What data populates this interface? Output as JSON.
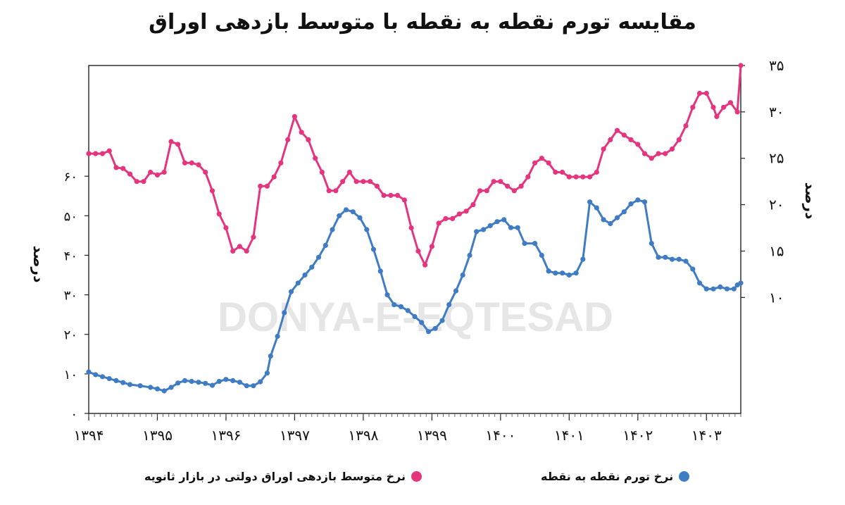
{
  "chart_data": {
    "type": "line",
    "title": "مقایسه تورم نقطه به نقطه با متوسط بازدهی اوراق",
    "watermark": "DONYA-E-EQTESAD",
    "left_axis": {
      "label": "درصد",
      "ticks": [
        "۰",
        "۱۰",
        "۲۰",
        "۳۰",
        "۴۰",
        "۵۰",
        "۶۰"
      ],
      "tick_values": [
        0,
        10,
        20,
        30,
        40,
        50,
        60
      ],
      "ylim": [
        0,
        88
      ]
    },
    "right_axis": {
      "label": "درصد",
      "ticks": [
        "۱۰",
        "۱۵",
        "۲۰",
        "۲۵",
        "۳۰",
        "۳۵"
      ],
      "tick_values": [
        10,
        15,
        20,
        25,
        30,
        35
      ],
      "ylim": [
        -2.5,
        35
      ]
    },
    "x_axis": {
      "ticks": [
        "۱۳۹۴",
        "۱۳۹۵",
        "۱۳۹۶",
        "۱۳۹۷",
        "۱۳۹۸",
        "۱۳۹۹",
        "۱۴۰۰",
        "۱۴۰۱",
        "۱۴۰۲",
        "۱۴۰۳"
      ],
      "tick_values": [
        1394,
        1395,
        1396,
        1397,
        1398,
        1399,
        1400,
        1401,
        1402,
        1403
      ],
      "xlim": [
        1394,
        1403.5
      ]
    },
    "series": [
      {
        "name": "نرخ تورم نقطه به نقطه",
        "color": "#3f7cc4",
        "axis": "left",
        "points": [
          [
            1394.0,
            10.5
          ],
          [
            1394.1,
            9.8
          ],
          [
            1394.2,
            9.3
          ],
          [
            1394.3,
            8.8
          ],
          [
            1394.4,
            8.3
          ],
          [
            1394.5,
            7.8
          ],
          [
            1394.6,
            7.3
          ],
          [
            1394.75,
            7.0
          ],
          [
            1394.9,
            6.6
          ],
          [
            1395.0,
            6.2
          ],
          [
            1395.1,
            5.7
          ],
          [
            1395.2,
            6.6
          ],
          [
            1395.3,
            7.7
          ],
          [
            1395.4,
            8.3
          ],
          [
            1395.5,
            8.1
          ],
          [
            1395.6,
            7.9
          ],
          [
            1395.7,
            7.6
          ],
          [
            1395.8,
            7.1
          ],
          [
            1395.9,
            8.1
          ],
          [
            1396.0,
            8.6
          ],
          [
            1396.1,
            8.3
          ],
          [
            1396.2,
            7.9
          ],
          [
            1396.3,
            7.0
          ],
          [
            1396.4,
            7.0
          ],
          [
            1396.5,
            8.0
          ],
          [
            1396.6,
            10.2
          ],
          [
            1396.65,
            14.5
          ],
          [
            1396.75,
            19.5
          ],
          [
            1396.85,
            25.5
          ],
          [
            1396.95,
            30.8
          ],
          [
            1397.05,
            33.0
          ],
          [
            1397.15,
            35.0
          ],
          [
            1397.25,
            37.0
          ],
          [
            1397.35,
            39.5
          ],
          [
            1397.45,
            42.5
          ],
          [
            1397.55,
            46.5
          ],
          [
            1397.65,
            50.0
          ],
          [
            1397.75,
            51.5
          ],
          [
            1397.85,
            51.0
          ],
          [
            1397.95,
            49.5
          ],
          [
            1398.05,
            46.5
          ],
          [
            1398.15,
            41.5
          ],
          [
            1398.25,
            36.0
          ],
          [
            1398.35,
            30.0
          ],
          [
            1398.45,
            27.5
          ],
          [
            1398.55,
            27.0
          ],
          [
            1398.65,
            26.0
          ],
          [
            1398.75,
            24.5
          ],
          [
            1398.85,
            23.0
          ],
          [
            1398.95,
            20.7
          ],
          [
            1399.05,
            21.5
          ],
          [
            1399.15,
            23.5
          ],
          [
            1399.25,
            27.5
          ],
          [
            1399.35,
            31.0
          ],
          [
            1399.45,
            35.0
          ],
          [
            1399.55,
            40.0
          ],
          [
            1399.65,
            46.0
          ],
          [
            1399.75,
            46.5
          ],
          [
            1399.85,
            47.5
          ],
          [
            1399.95,
            48.5
          ],
          [
            1400.05,
            49.0
          ],
          [
            1400.15,
            47.0
          ],
          [
            1400.25,
            47.0
          ],
          [
            1400.35,
            43.0
          ],
          [
            1400.5,
            43.0
          ],
          [
            1400.6,
            40.0
          ],
          [
            1400.7,
            36.0
          ],
          [
            1400.8,
            35.5
          ],
          [
            1400.9,
            35.5
          ],
          [
            1401.0,
            35.0
          ],
          [
            1401.1,
            35.5
          ],
          [
            1401.2,
            39.0
          ],
          [
            1401.3,
            53.5
          ],
          [
            1401.4,
            52.0
          ],
          [
            1401.5,
            49.0
          ],
          [
            1401.6,
            48.0
          ],
          [
            1401.7,
            49.5
          ],
          [
            1401.8,
            51.0
          ],
          [
            1401.9,
            53.0
          ],
          [
            1402.0,
            54.0
          ],
          [
            1402.1,
            53.5
          ],
          [
            1402.2,
            43.0
          ],
          [
            1402.3,
            39.5
          ],
          [
            1402.4,
            39.5
          ],
          [
            1402.5,
            39.0
          ],
          [
            1402.6,
            39.0
          ],
          [
            1402.7,
            38.5
          ],
          [
            1402.8,
            36.5
          ],
          [
            1402.9,
            33.0
          ],
          [
            1403.0,
            31.5
          ],
          [
            1403.1,
            31.5
          ],
          [
            1403.2,
            32.0
          ],
          [
            1403.3,
            31.5
          ],
          [
            1403.4,
            31.5
          ],
          [
            1403.45,
            32.5
          ],
          [
            1403.5,
            33.0
          ]
        ]
      },
      {
        "name": "نرخ متوسط بازدهی اوراق دولتی در بازار ثانویه",
        "color": "#e5357f",
        "axis": "right",
        "points": [
          [
            1394.0,
            25.5
          ],
          [
            1394.1,
            25.5
          ],
          [
            1394.2,
            25.5
          ],
          [
            1394.3,
            25.8
          ],
          [
            1394.4,
            24.0
          ],
          [
            1394.5,
            23.9
          ],
          [
            1394.6,
            23.3
          ],
          [
            1394.7,
            22.5
          ],
          [
            1394.8,
            22.5
          ],
          [
            1394.9,
            23.5
          ],
          [
            1395.0,
            23.2
          ],
          [
            1395.1,
            23.5
          ],
          [
            1395.2,
            26.8
          ],
          [
            1395.3,
            26.5
          ],
          [
            1395.4,
            24.5
          ],
          [
            1395.5,
            24.5
          ],
          [
            1395.6,
            24.3
          ],
          [
            1395.7,
            23.5
          ],
          [
            1395.8,
            21.5
          ],
          [
            1395.9,
            19.0
          ],
          [
            1396.0,
            17.5
          ],
          [
            1396.1,
            15.0
          ],
          [
            1396.2,
            15.5
          ],
          [
            1396.3,
            15.0
          ],
          [
            1396.4,
            16.5
          ],
          [
            1396.5,
            22.0
          ],
          [
            1396.6,
            22.0
          ],
          [
            1396.7,
            23.0
          ],
          [
            1396.8,
            24.5
          ],
          [
            1396.9,
            27.0
          ],
          [
            1397.0,
            29.5
          ],
          [
            1397.1,
            27.8
          ],
          [
            1397.2,
            27.0
          ],
          [
            1397.3,
            25.0
          ],
          [
            1397.4,
            23.5
          ],
          [
            1397.5,
            21.5
          ],
          [
            1397.6,
            21.5
          ],
          [
            1397.7,
            22.5
          ],
          [
            1397.8,
            23.5
          ],
          [
            1397.9,
            22.5
          ],
          [
            1398.0,
            22.5
          ],
          [
            1398.1,
            22.5
          ],
          [
            1398.2,
            22.0
          ],
          [
            1398.3,
            21.0
          ],
          [
            1398.4,
            21.0
          ],
          [
            1398.5,
            21.0
          ],
          [
            1398.6,
            20.5
          ],
          [
            1398.7,
            17.5
          ],
          [
            1398.8,
            15.0
          ],
          [
            1398.9,
            13.5
          ],
          [
            1399.0,
            15.5
          ],
          [
            1399.1,
            18.0
          ],
          [
            1399.2,
            18.5
          ],
          [
            1399.3,
            18.5
          ],
          [
            1399.4,
            19.0
          ],
          [
            1399.5,
            19.3
          ],
          [
            1399.6,
            20.0
          ],
          [
            1399.7,
            21.5
          ],
          [
            1399.8,
            21.5
          ],
          [
            1399.9,
            22.5
          ],
          [
            1400.0,
            22.5
          ],
          [
            1400.1,
            22.0
          ],
          [
            1400.2,
            21.5
          ],
          [
            1400.3,
            22.0
          ],
          [
            1400.4,
            23.0
          ],
          [
            1400.5,
            24.5
          ],
          [
            1400.6,
            25.0
          ],
          [
            1400.7,
            24.5
          ],
          [
            1400.8,
            23.5
          ],
          [
            1400.9,
            23.5
          ],
          [
            1401.0,
            23.0
          ],
          [
            1401.1,
            23.0
          ],
          [
            1401.2,
            23.0
          ],
          [
            1401.3,
            23.0
          ],
          [
            1401.4,
            23.5
          ],
          [
            1401.5,
            26.0
          ],
          [
            1401.6,
            27.0
          ],
          [
            1401.7,
            28.0
          ],
          [
            1401.8,
            27.5
          ],
          [
            1401.9,
            27.0
          ],
          [
            1402.0,
            26.5
          ],
          [
            1402.1,
            25.5
          ],
          [
            1402.2,
            25.0
          ],
          [
            1402.3,
            25.5
          ],
          [
            1402.4,
            25.5
          ],
          [
            1402.5,
            26.0
          ],
          [
            1402.6,
            27.0
          ],
          [
            1402.7,
            28.5
          ],
          [
            1402.8,
            30.5
          ],
          [
            1402.9,
            32.0
          ],
          [
            1403.0,
            32.0
          ],
          [
            1403.1,
            30.5
          ],
          [
            1403.15,
            29.5
          ],
          [
            1403.25,
            30.5
          ],
          [
            1403.35,
            31.0
          ],
          [
            1403.45,
            30.0
          ],
          [
            1403.5,
            35.0
          ]
        ]
      }
    ],
    "grid": false,
    "legend_position": "bottom"
  }
}
